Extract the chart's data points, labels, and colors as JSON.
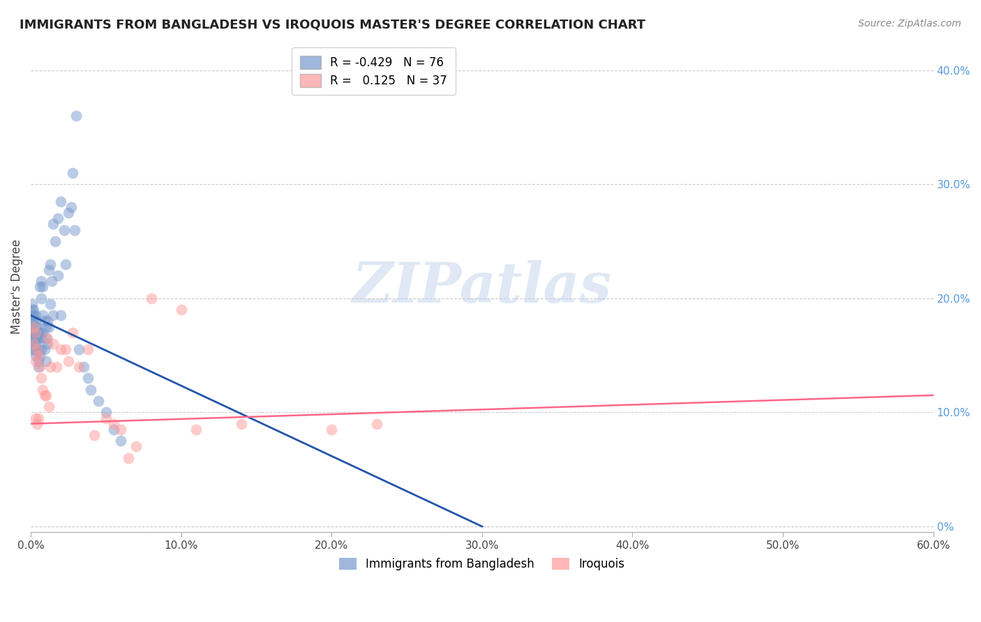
{
  "title": "IMMIGRANTS FROM BANGLADESH VS IROQUOIS MASTER'S DEGREE CORRELATION CHART",
  "source": "Source: ZipAtlas.com",
  "ylabel": "Master's Degree",
  "xlim": [
    0.0,
    0.6
  ],
  "ylim": [
    -0.005,
    0.425
  ],
  "legend_blue_R": "-0.429",
  "legend_blue_N": "76",
  "legend_pink_R": "0.125",
  "legend_pink_N": "37",
  "blue_color": "#7799CC",
  "pink_color": "#FF9999",
  "blue_line_color": "#2255AA",
  "pink_line_color": "#FF6688",
  "watermark_text": "ZIPatlas",
  "blue_scatter_x": [
    0.001,
    0.001,
    0.001,
    0.001,
    0.001,
    0.001,
    0.001,
    0.001,
    0.001,
    0.002,
    0.002,
    0.002,
    0.002,
    0.002,
    0.002,
    0.002,
    0.003,
    0.003,
    0.003,
    0.003,
    0.003,
    0.003,
    0.003,
    0.004,
    0.004,
    0.004,
    0.004,
    0.005,
    0.005,
    0.005,
    0.005,
    0.005,
    0.006,
    0.006,
    0.006,
    0.007,
    0.007,
    0.007,
    0.007,
    0.008,
    0.008,
    0.008,
    0.009,
    0.009,
    0.01,
    0.01,
    0.01,
    0.011,
    0.011,
    0.012,
    0.012,
    0.013,
    0.013,
    0.014,
    0.015,
    0.015,
    0.016,
    0.018,
    0.018,
    0.02,
    0.02,
    0.022,
    0.023,
    0.025,
    0.027,
    0.028,
    0.029,
    0.03,
    0.032,
    0.035,
    0.038,
    0.04,
    0.045,
    0.05,
    0.055,
    0.06
  ],
  "blue_scatter_y": [
    0.19,
    0.185,
    0.18,
    0.175,
    0.17,
    0.165,
    0.16,
    0.155,
    0.195,
    0.19,
    0.185,
    0.18,
    0.17,
    0.165,
    0.16,
    0.155,
    0.185,
    0.18,
    0.175,
    0.17,
    0.165,
    0.16,
    0.15,
    0.175,
    0.17,
    0.165,
    0.155,
    0.17,
    0.165,
    0.155,
    0.145,
    0.14,
    0.21,
    0.17,
    0.15,
    0.215,
    0.2,
    0.165,
    0.155,
    0.21,
    0.185,
    0.17,
    0.18,
    0.155,
    0.175,
    0.165,
    0.145,
    0.18,
    0.16,
    0.225,
    0.175,
    0.23,
    0.195,
    0.215,
    0.265,
    0.185,
    0.25,
    0.27,
    0.22,
    0.285,
    0.185,
    0.26,
    0.23,
    0.275,
    0.28,
    0.31,
    0.26,
    0.36,
    0.155,
    0.14,
    0.13,
    0.12,
    0.11,
    0.1,
    0.085,
    0.075
  ],
  "pink_scatter_x": [
    0.002,
    0.002,
    0.003,
    0.003,
    0.003,
    0.004,
    0.004,
    0.005,
    0.005,
    0.006,
    0.007,
    0.008,
    0.009,
    0.01,
    0.011,
    0.012,
    0.013,
    0.015,
    0.017,
    0.02,
    0.023,
    0.025,
    0.028,
    0.032,
    0.038,
    0.042,
    0.05,
    0.055,
    0.06,
    0.065,
    0.07,
    0.08,
    0.1,
    0.11,
    0.14,
    0.2,
    0.23
  ],
  "pink_scatter_y": [
    0.175,
    0.16,
    0.17,
    0.145,
    0.095,
    0.155,
    0.09,
    0.15,
    0.095,
    0.14,
    0.13,
    0.12,
    0.115,
    0.115,
    0.165,
    0.105,
    0.14,
    0.16,
    0.14,
    0.155,
    0.155,
    0.145,
    0.17,
    0.14,
    0.155,
    0.08,
    0.095,
    0.09,
    0.085,
    0.06,
    0.07,
    0.2,
    0.19,
    0.085,
    0.09,
    0.085,
    0.09
  ],
  "blue_trendline_x": [
    0.0,
    0.3
  ],
  "blue_trendline_y": [
    0.185,
    0.0
  ],
  "pink_trendline_x": [
    0.0,
    0.6
  ],
  "pink_trendline_y": [
    0.09,
    0.115
  ],
  "right_ytick_vals": [
    0.0,
    0.1,
    0.2,
    0.3,
    0.4
  ],
  "right_ytick_labels": [
    "0%",
    "10.0%",
    "20.0%",
    "30.0%",
    "40.0%"
  ]
}
